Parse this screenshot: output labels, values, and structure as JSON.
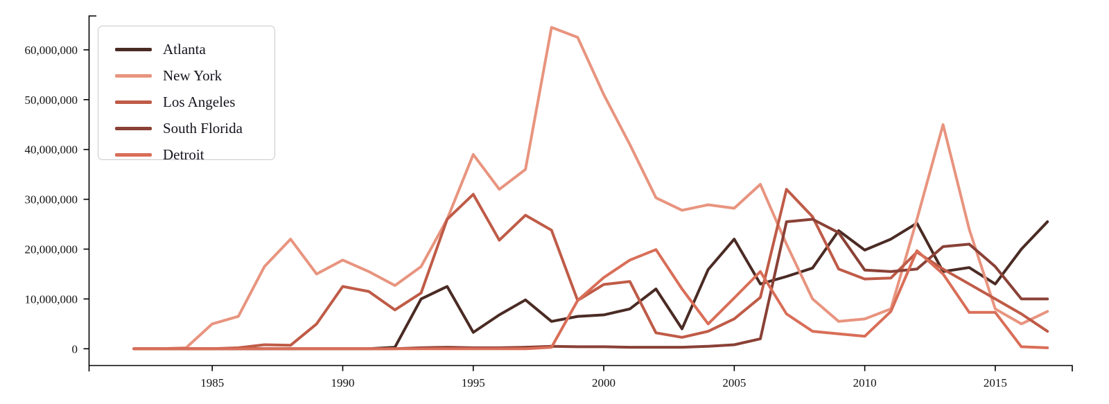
{
  "chart_data": {
    "type": "line",
    "title": "",
    "xlabel": "",
    "ylabel": "",
    "grid": false,
    "legend_position": "top-left",
    "values_unit_multiplier": 1000000,
    "ylim_millions": [
      0,
      66
    ],
    "x": [
      1982,
      1983,
      1984,
      1985,
      1986,
      1987,
      1988,
      1989,
      1990,
      1991,
      1992,
      1993,
      1994,
      1995,
      1996,
      1997,
      1998,
      1999,
      2000,
      2001,
      2002,
      2003,
      2004,
      2005,
      2006,
      2007,
      2008,
      2009,
      2010,
      2011,
      2012,
      2013,
      2014,
      2015,
      2016,
      2017
    ],
    "x_ticks": [
      1985,
      1990,
      1995,
      2000,
      2005,
      2010,
      2015
    ],
    "y_ticks": [
      {
        "value_millions": 0,
        "label": "0"
      },
      {
        "value_millions": 10,
        "label": "10,000,000"
      },
      {
        "value_millions": 20,
        "label": "20,000,000"
      },
      {
        "value_millions": 30,
        "label": "30,000,000"
      },
      {
        "value_millions": 40,
        "label": "40,000,000"
      },
      {
        "value_millions": 50,
        "label": "50,000,000"
      },
      {
        "value_millions": 60,
        "label": "60,000,000"
      }
    ],
    "series": [
      {
        "name": "Atlanta",
        "color": "#4A2B24",
        "values_millions": [
          0,
          0,
          0,
          0,
          0,
          0,
          0,
          0,
          0,
          0,
          0.3,
          10,
          12.5,
          3.3,
          6.8,
          9.8,
          5.5,
          6.5,
          6.8,
          8,
          12,
          4,
          15.9,
          22,
          13,
          14.5,
          16.2,
          23.7,
          19.8,
          22,
          25.2,
          15.5,
          16.3,
          13,
          20,
          25.5
        ]
      },
      {
        "name": "New York",
        "color": "#E8947F",
        "values_millions": [
          0,
          0,
          0.2,
          5,
          6.5,
          16.5,
          22,
          15,
          17.8,
          15.5,
          12.7,
          16.5,
          26,
          39,
          32,
          36,
          64.5,
          62.5,
          51,
          41,
          30.3,
          27.8,
          28.9,
          28.2,
          33,
          21,
          10,
          5.5,
          6,
          8,
          26,
          45,
          24,
          8,
          5,
          7.5
        ]
      },
      {
        "name": "Los Angeles",
        "color": "#BF5B47",
        "values_millions": [
          0,
          0,
          0,
          0,
          0.2,
          0.8,
          0.7,
          5,
          12.5,
          11.5,
          7.8,
          11.2,
          26,
          31,
          21.8,
          26.8,
          23.8,
          9.7,
          12.9,
          13.5,
          3.2,
          2.3,
          3.5,
          6,
          10.3,
          32,
          26.5,
          16,
          14,
          14.2,
          19.4,
          16,
          13,
          10,
          7,
          3.5
        ]
      },
      {
        "name": "South Florida",
        "color": "#8A4136",
        "values_millions": [
          0,
          0,
          0,
          0,
          0,
          0,
          0,
          0,
          0,
          0,
          0,
          0.2,
          0.3,
          0.2,
          0.2,
          0.3,
          0.5,
          0.4,
          0.4,
          0.3,
          0.3,
          0.3,
          0.5,
          0.8,
          2,
          25.5,
          26,
          23.3,
          15.8,
          15.5,
          16,
          20.5,
          21,
          16.5,
          10,
          10
        ]
      },
      {
        "name": "Detroit",
        "color": "#D96E58",
        "values_millions": [
          0,
          0,
          0,
          0,
          0,
          0,
          0,
          0,
          0,
          0,
          0,
          0,
          0,
          0,
          0,
          0,
          0.3,
          9.7,
          14.3,
          17.8,
          19.9,
          12,
          5,
          10.2,
          15.5,
          7,
          3.5,
          3,
          2.5,
          7.5,
          19.7,
          15,
          7.3,
          7.3,
          0.4,
          0.2
        ]
      }
    ],
    "axis_color": "#000000"
  }
}
